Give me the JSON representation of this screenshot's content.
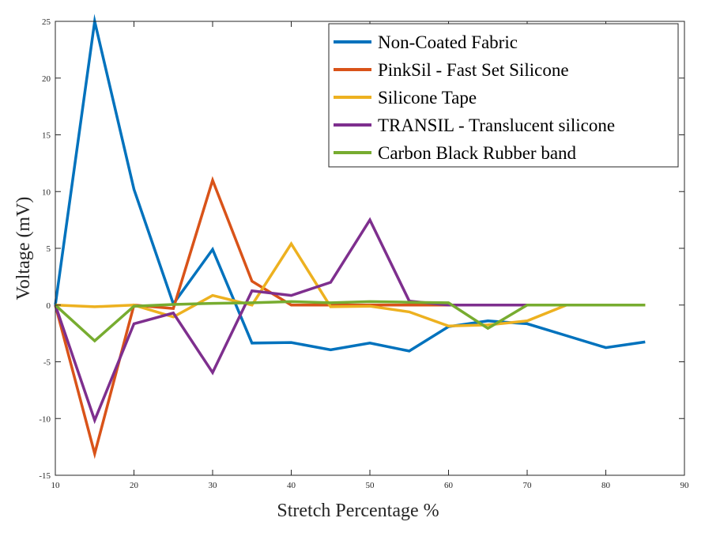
{
  "chart_data": {
    "type": "line",
    "title": "",
    "xlabel": "Stretch Percentage %",
    "ylabel": "Voltage (mV)",
    "xlim": [
      10,
      90
    ],
    "ylim": [
      -15,
      25
    ],
    "xticks": [
      10,
      20,
      30,
      40,
      50,
      60,
      70,
      80,
      90
    ],
    "yticks": [
      -15,
      -10,
      -5,
      0,
      5,
      10,
      15,
      20,
      25
    ],
    "grid": false,
    "legend_position": "top-right",
    "series": [
      {
        "name": "Non-Coated Fabric",
        "color": "#0072BD",
        "points": [
          [
            10,
            0
          ],
          [
            15,
            25
          ],
          [
            20,
            10.2
          ],
          [
            25,
            0.1
          ],
          [
            30,
            4.9
          ],
          [
            35,
            -3.35
          ],
          [
            40,
            -3.3
          ],
          [
            45,
            -3.95
          ],
          [
            50,
            -3.35
          ],
          [
            55,
            -4.05
          ],
          [
            60,
            -1.9
          ],
          [
            65,
            -1.4
          ],
          [
            70,
            -1.65
          ],
          [
            75,
            -2.7
          ],
          [
            80,
            -3.75
          ],
          [
            85,
            -3.25
          ]
        ]
      },
      {
        "name": "PinkSil - Fast Set Silicone",
        "color": "#D95319",
        "points": [
          [
            10,
            0
          ],
          [
            15,
            -13.1
          ],
          [
            20,
            0
          ],
          [
            25,
            -0.3
          ],
          [
            30,
            11
          ],
          [
            35,
            2.1
          ],
          [
            40,
            0
          ],
          [
            45,
            0
          ],
          [
            50,
            0
          ],
          [
            55,
            0
          ],
          [
            60,
            0
          ],
          [
            65,
            0
          ],
          [
            70,
            0
          ],
          [
            75,
            0
          ],
          [
            80,
            0
          ],
          [
            85,
            0
          ]
        ]
      },
      {
        "name": "Silicone Tape",
        "color": "#EDB120",
        "points": [
          [
            10,
            0
          ],
          [
            15,
            -0.15
          ],
          [
            20,
            0
          ],
          [
            25,
            -1.05
          ],
          [
            30,
            0.85
          ],
          [
            35,
            0
          ],
          [
            40,
            5.4
          ],
          [
            45,
            -0.15
          ],
          [
            50,
            -0.1
          ],
          [
            55,
            -0.6
          ],
          [
            60,
            -1.85
          ],
          [
            65,
            -1.75
          ],
          [
            70,
            -1.4
          ],
          [
            75,
            0
          ],
          [
            80,
            0
          ],
          [
            85,
            0
          ]
        ]
      },
      {
        "name": "TRANSIL - Translucent silicone",
        "color": "#7E2F8E",
        "points": [
          [
            10,
            0
          ],
          [
            15,
            -10.15
          ],
          [
            20,
            -1.65
          ],
          [
            25,
            -0.7
          ],
          [
            30,
            -5.95
          ],
          [
            35,
            1.25
          ],
          [
            40,
            0.85
          ],
          [
            45,
            2
          ],
          [
            50,
            7.5
          ],
          [
            55,
            0.35
          ],
          [
            60,
            0
          ],
          [
            65,
            0
          ],
          [
            70,
            0
          ]
        ]
      },
      {
        "name": "Carbon Black Rubber band",
        "color": "#77AC30",
        "points": [
          [
            10,
            0
          ],
          [
            15,
            -3.15
          ],
          [
            20,
            -0.1
          ],
          [
            25,
            0.05
          ],
          [
            30,
            0.15
          ],
          [
            35,
            0.2
          ],
          [
            40,
            0.3
          ],
          [
            45,
            0.2
          ],
          [
            50,
            0.3
          ],
          [
            55,
            0.25
          ],
          [
            60,
            0.2
          ],
          [
            65,
            -2.05
          ],
          [
            70,
            0
          ],
          [
            75,
            0
          ],
          [
            80,
            0
          ],
          [
            85,
            0
          ]
        ]
      }
    ]
  }
}
